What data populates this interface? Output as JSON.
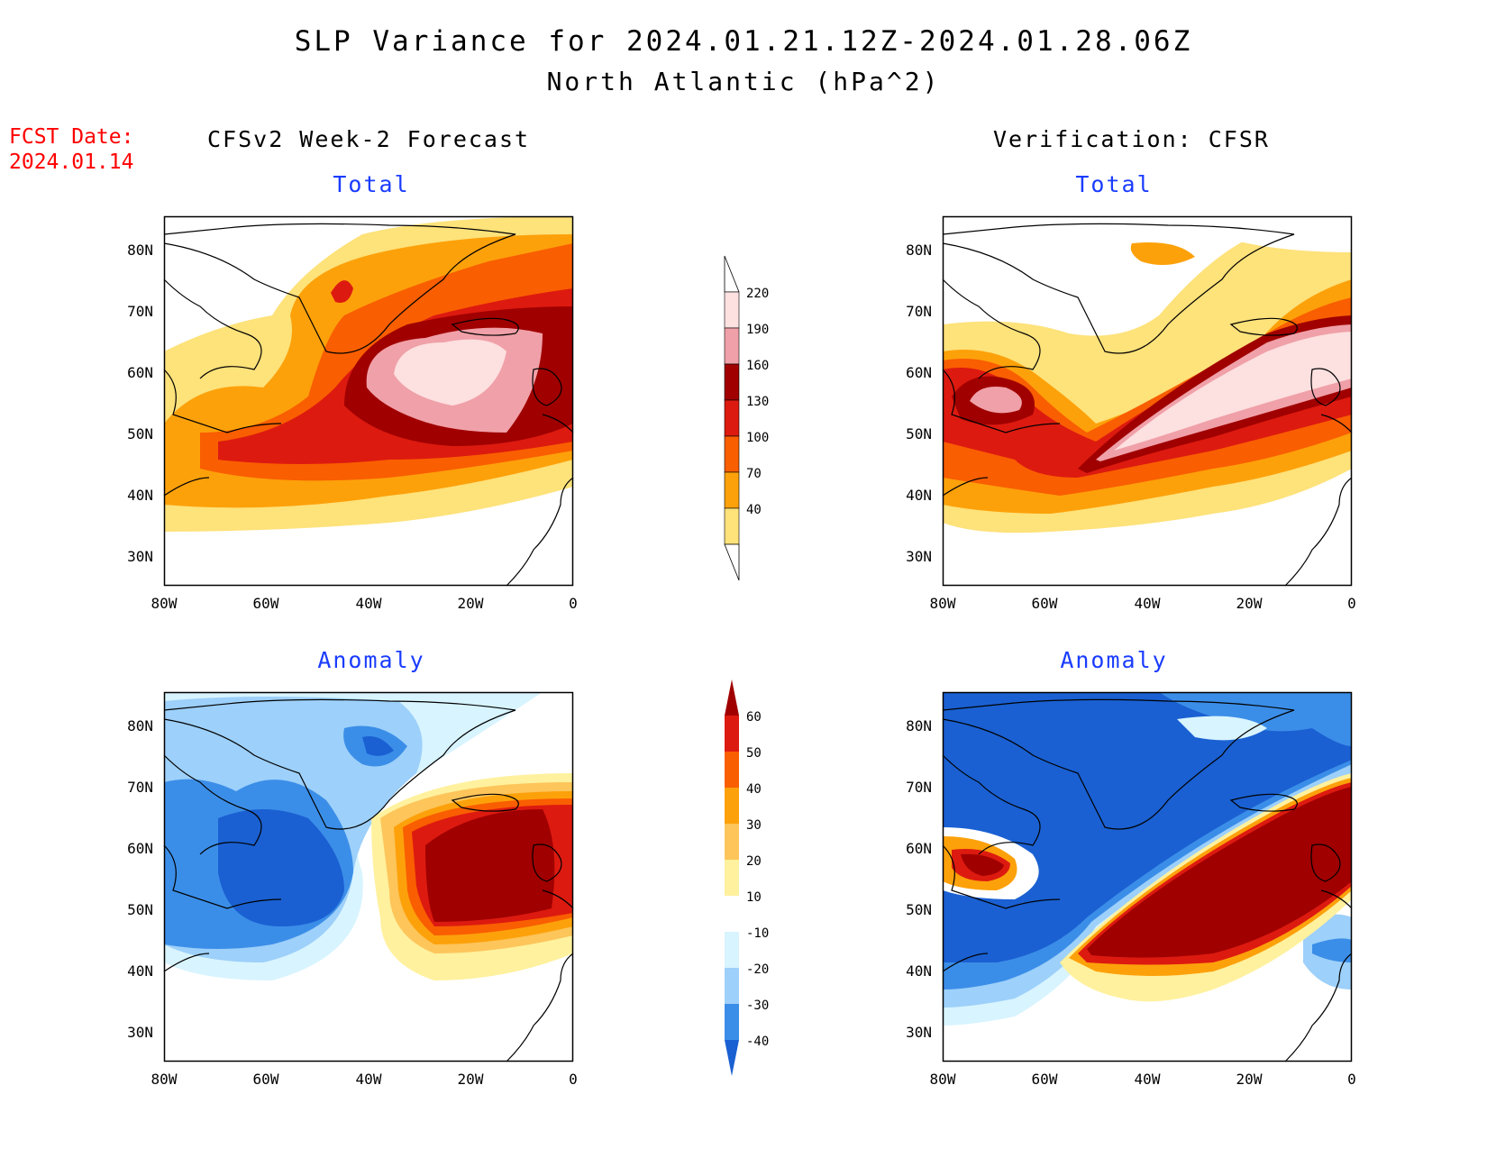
{
  "title": {
    "line1": "SLP Variance for 2024.01.21.12Z-2024.01.28.06Z",
    "line2": "North Atlantic (hPa^2)"
  },
  "fcst": {
    "line1": "FCST Date:",
    "line2": "2024.01.14"
  },
  "columns": {
    "left": "CFSv2 Week-2 Forecast",
    "right": "Verification: CFSR"
  },
  "panels": {
    "top_left": "Total",
    "top_right": "Total",
    "bottom_left": "Anomaly",
    "bottom_right": "Anomaly"
  },
  "axes": {
    "lat_labels": [
      "80N",
      "70N",
      "60N",
      "50N",
      "40N",
      "30N"
    ],
    "lon_labels": [
      "80W",
      "60W",
      "40W",
      "20W",
      "0"
    ]
  },
  "colorbars": {
    "total": {
      "levels": [
        "220",
        "190",
        "160",
        "130",
        "100",
        "70",
        "40"
      ],
      "colors": [
        "#fde0e0",
        "#f0a0a8",
        "#a00000",
        "#dd1a10",
        "#f95e00",
        "#fda10a",
        "#fee27a"
      ]
    },
    "anomaly": {
      "levels": [
        "60",
        "50",
        "40",
        "30",
        "20",
        "10",
        "-10",
        "-20",
        "-30",
        "-40"
      ],
      "colors": [
        "#a00000",
        "#dd1a10",
        "#f95e00",
        "#fda10a",
        "#fdc55a",
        "#fff19e",
        "#ffffff",
        "#d8f4ff",
        "#9dd0fa",
        "#3b8ee8",
        "#1a60d2"
      ]
    }
  }
}
